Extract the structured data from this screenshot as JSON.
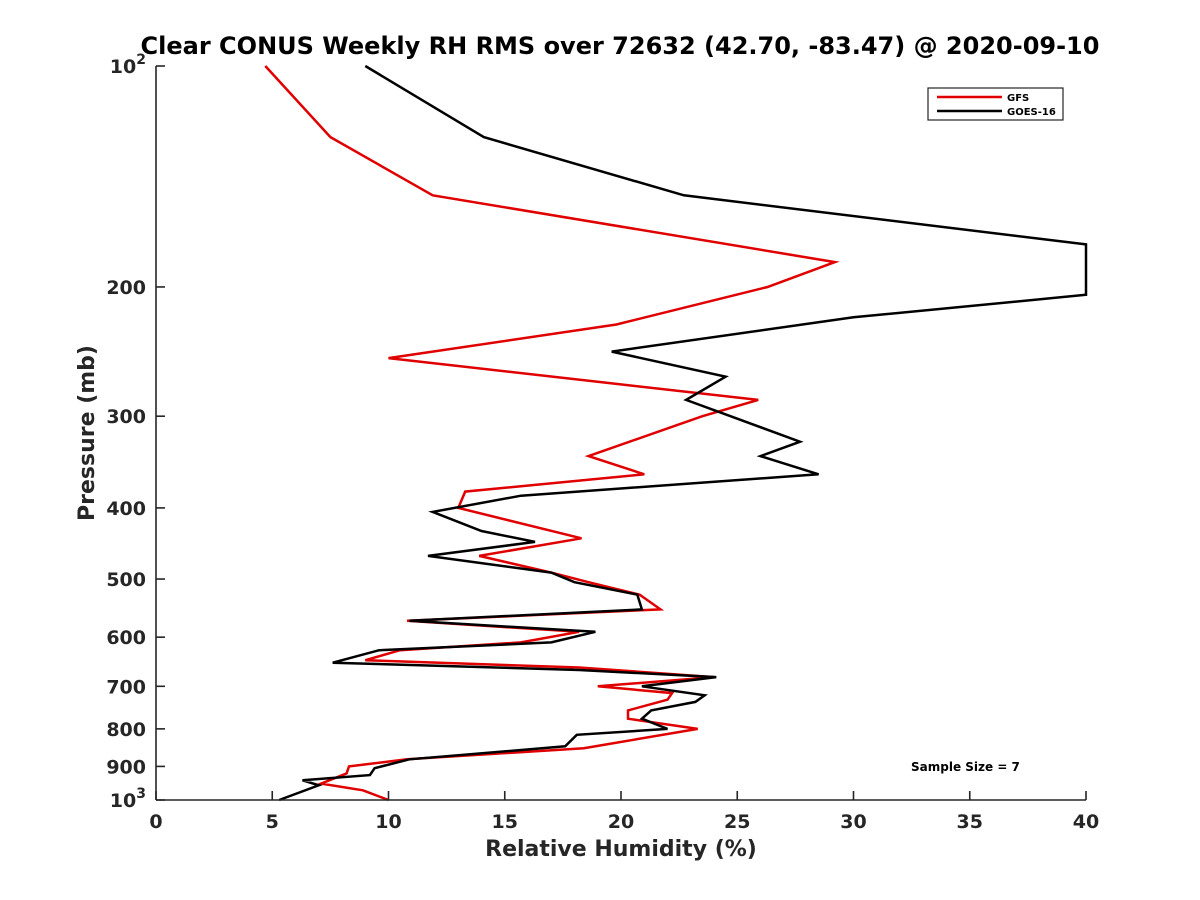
{
  "chart_data": {
    "type": "line",
    "title": "Clear CONUS Weekly RH RMS over 72632 (42.70, -83.47) @ 2020-09-10",
    "xlabel": "Relative Humidity (%)",
    "ylabel": "Pressure (mb)",
    "xlim": [
      0,
      40
    ],
    "ylim": [
      100,
      1000
    ],
    "y_scale": "log",
    "y_reversed": true,
    "grid": false,
    "x_ticks": [
      "0",
      "5",
      "10",
      "15",
      "20",
      "25",
      "30",
      "35",
      "40"
    ],
    "x_tick_values": [
      0,
      5,
      10,
      15,
      20,
      25,
      30,
      35,
      40
    ],
    "y_ticks": [
      {
        "value": 100,
        "base": "10",
        "exp": "2"
      },
      {
        "value": 200,
        "label": "200"
      },
      {
        "value": 300,
        "label": "300"
      },
      {
        "value": 400,
        "label": "400"
      },
      {
        "value": 500,
        "label": "500"
      },
      {
        "value": 600,
        "label": "600"
      },
      {
        "value": 700,
        "label": "700"
      },
      {
        "value": 800,
        "label": "800"
      },
      {
        "value": 900,
        "label": "900"
      },
      {
        "value": 1000,
        "base": "10",
        "exp": "3"
      }
    ],
    "legend_position": "top-right",
    "annotation": "Sample Size = 7",
    "series": [
      {
        "name": "GFS",
        "color": "#e00000",
        "points": [
          [
            4.7,
            100
          ],
          [
            7.5,
            125
          ],
          [
            11.9,
            150
          ],
          [
            29.2,
            185
          ],
          [
            26.3,
            200
          ],
          [
            19.8,
            225
          ],
          [
            10.0,
            250
          ],
          [
            25.9,
            285
          ],
          [
            23.5,
            300
          ],
          [
            18.6,
            340
          ],
          [
            21.0,
            360
          ],
          [
            13.3,
            380
          ],
          [
            13.0,
            400
          ],
          [
            18.3,
            440
          ],
          [
            13.9,
            465
          ],
          [
            17.0,
            490
          ],
          [
            18.6,
            505
          ],
          [
            20.8,
            525
          ],
          [
            21.7,
            550
          ],
          [
            10.8,
            570
          ],
          [
            18.2,
            590
          ],
          [
            15.7,
            610
          ],
          [
            10.5,
            625
          ],
          [
            9.0,
            645
          ],
          [
            18.2,
            660
          ],
          [
            24.0,
            680
          ],
          [
            19.0,
            700
          ],
          [
            22.2,
            715
          ],
          [
            22.0,
            730
          ],
          [
            20.3,
            755
          ],
          [
            20.3,
            775
          ],
          [
            23.3,
            800
          ],
          [
            18.4,
            850
          ],
          [
            10.8,
            880
          ],
          [
            8.3,
            900
          ],
          [
            8.2,
            920
          ],
          [
            7.1,
            950
          ],
          [
            8.9,
            970
          ],
          [
            10.0,
            1000
          ]
        ]
      },
      {
        "name": "GOES-16",
        "color": "#000000",
        "points": [
          [
            9.0,
            100
          ],
          [
            14.1,
            125
          ],
          [
            22.7,
            150
          ],
          [
            40.0,
            175
          ],
          [
            40.0,
            205
          ],
          [
            30.0,
            220
          ],
          [
            19.6,
            245
          ],
          [
            24.5,
            265
          ],
          [
            22.8,
            285
          ],
          [
            27.7,
            325
          ],
          [
            26.0,
            340
          ],
          [
            28.5,
            360
          ],
          [
            15.7,
            385
          ],
          [
            11.9,
            405
          ],
          [
            14.0,
            430
          ],
          [
            16.3,
            445
          ],
          [
            11.7,
            465
          ],
          [
            17.0,
            490
          ],
          [
            18.0,
            505
          ],
          [
            20.7,
            525
          ],
          [
            20.9,
            550
          ],
          [
            10.9,
            570
          ],
          [
            18.9,
            590
          ],
          [
            17.0,
            610
          ],
          [
            9.6,
            625
          ],
          [
            7.6,
            650
          ],
          [
            18.2,
            665
          ],
          [
            24.1,
            680
          ],
          [
            20.9,
            700
          ],
          [
            23.6,
            720
          ],
          [
            23.2,
            735
          ],
          [
            21.3,
            755
          ],
          [
            20.9,
            775
          ],
          [
            22.0,
            800
          ],
          [
            18.1,
            815
          ],
          [
            17.6,
            845
          ],
          [
            10.9,
            880
          ],
          [
            9.4,
            905
          ],
          [
            9.2,
            925
          ],
          [
            6.3,
            940
          ],
          [
            7.0,
            955
          ],
          [
            5.3,
            1000
          ]
        ]
      }
    ]
  }
}
